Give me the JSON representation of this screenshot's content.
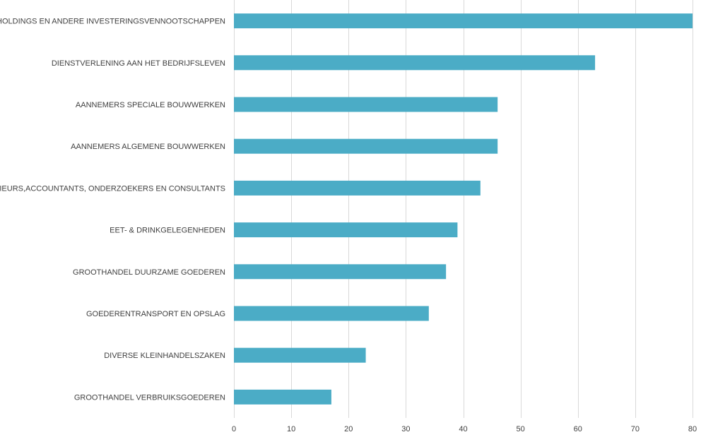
{
  "chart_data": {
    "type": "bar",
    "orientation": "horizontal",
    "title": "",
    "xlabel": "",
    "ylabel": "",
    "categories": [
      "HOLDINGS EN ANDERE INVESTERINGSVENNOOTSCHAPPEN",
      "DIENSTVERLENING AAN HET BEDRIJFSLEVEN",
      "AANNEMERS SPECIALE BOUWWERKEN",
      "AANNEMERS ALGEMENE BOUWWERKEN",
      "INGENIEURS,ACCOUNTANTS, ONDERZOEKERS EN CONSULTANTS",
      "EET- & DRINKGELEGENHEDEN",
      "GROOTHANDEL DUURZAME GOEDEREN",
      "GOEDERENTRANSPORT EN OPSLAG",
      "DIVERSE KLEINHANDELSZAKEN",
      "GROOTHANDEL VERBRUIKSGOEDEREN"
    ],
    "values": [
      80,
      63,
      46,
      46,
      43,
      39,
      37,
      34,
      23,
      17
    ],
    "xlim": [
      0,
      80
    ],
    "xticks": [
      0,
      10,
      20,
      30,
      40,
      50,
      60,
      70,
      80
    ],
    "grid": true,
    "legend": "none",
    "bar_color": "#4bacc6"
  }
}
